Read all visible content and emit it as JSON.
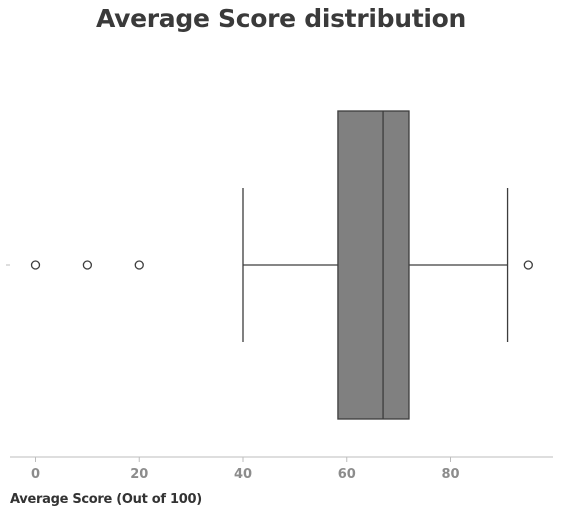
{
  "chart_data": {
    "type": "box",
    "title": "Average Score distribution",
    "xlabel": "Average Score (Out of 100)",
    "ylabel": "",
    "xlim": [
      -5,
      100
    ],
    "xticks": [
      0,
      20,
      40,
      60,
      80
    ],
    "box": {
      "whisker_low": 40,
      "q1": 58.3,
      "median": 67,
      "q3": 72,
      "whisker_high": 91,
      "outliers": [
        0,
        10,
        20,
        95
      ]
    },
    "colors": {
      "box_fill": "#808080",
      "line": "#3d3d3d",
      "axis": "#bdbdbd"
    },
    "grid": false
  }
}
